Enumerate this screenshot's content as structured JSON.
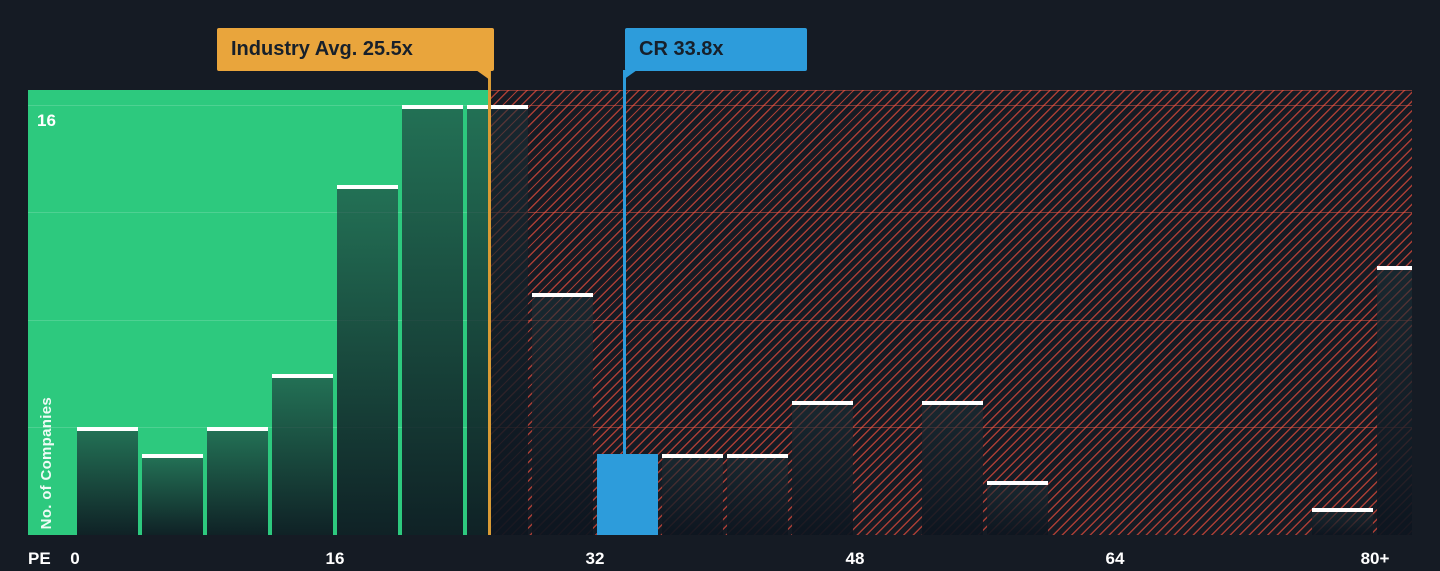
{
  "colors": {
    "background": "#151B24",
    "undervalued_zone_green": "#2DC97E",
    "overvalued_hatch_red": "#E74C3C",
    "highlight_bar_blue": "#2D9CDB",
    "industry_avg_amber": "#E9A53C",
    "bar_cap_white": "#FFFFFF",
    "axis_text": "#FFFFFF"
  },
  "chart_data": {
    "type": "bar",
    "title": "PE distribution histogram with industry average and company markers",
    "xlabel": "PE",
    "ylabel": "No. of Companies",
    "x_tick_labels": [
      "0",
      "16",
      "32",
      "48",
      "64",
      "80+"
    ],
    "x_tick_values": [
      0,
      16,
      32,
      48,
      64,
      80
    ],
    "y_tick_labels": [
      "16"
    ],
    "y_tick_values": [
      16
    ],
    "ylim": [
      0,
      16.6
    ],
    "xlim": [
      -2.9,
      82.3
    ],
    "grid": true,
    "grid_interval": 4,
    "legend_position": "none",
    "bucket_size": 4,
    "bars": [
      {
        "pe_start": 0,
        "count": 4
      },
      {
        "pe_start": 4,
        "count": 3
      },
      {
        "pe_start": 8,
        "count": 4
      },
      {
        "pe_start": 12,
        "count": 6
      },
      {
        "pe_start": 16,
        "count": 13
      },
      {
        "pe_start": 20,
        "count": 16
      },
      {
        "pe_start": 24,
        "count": 16
      },
      {
        "pe_start": 28,
        "count": 9
      },
      {
        "pe_start": 32,
        "count": 3,
        "highlight": true
      },
      {
        "pe_start": 36,
        "count": 3
      },
      {
        "pe_start": 40,
        "count": 3
      },
      {
        "pe_start": 44,
        "count": 5
      },
      {
        "pe_start": 48,
        "count": 0
      },
      {
        "pe_start": 52,
        "count": 5
      },
      {
        "pe_start": 56,
        "count": 2
      },
      {
        "pe_start": 60,
        "count": 0
      },
      {
        "pe_start": 64,
        "count": 0
      },
      {
        "pe_start": 68,
        "count": 0
      },
      {
        "pe_start": 72,
        "count": 0
      },
      {
        "pe_start": 76,
        "count": 1
      },
      {
        "pe_start": 80,
        "count": 10
      }
    ],
    "markers": [
      {
        "id": "industry_avg",
        "label": "Industry Avg. 25.5x",
        "value": 25.5,
        "color": "#E9A53C"
      },
      {
        "id": "company",
        "label": "CR 33.8x",
        "value": 33.8,
        "color": "#2D9CDB"
      }
    ],
    "zones": [
      {
        "id": "undervalued",
        "from": -2.9,
        "to": 25.5,
        "style": "solid-green"
      },
      {
        "id": "overvalued",
        "from": 25.5,
        "to": 82.3,
        "style": "red-hatch"
      }
    ]
  }
}
